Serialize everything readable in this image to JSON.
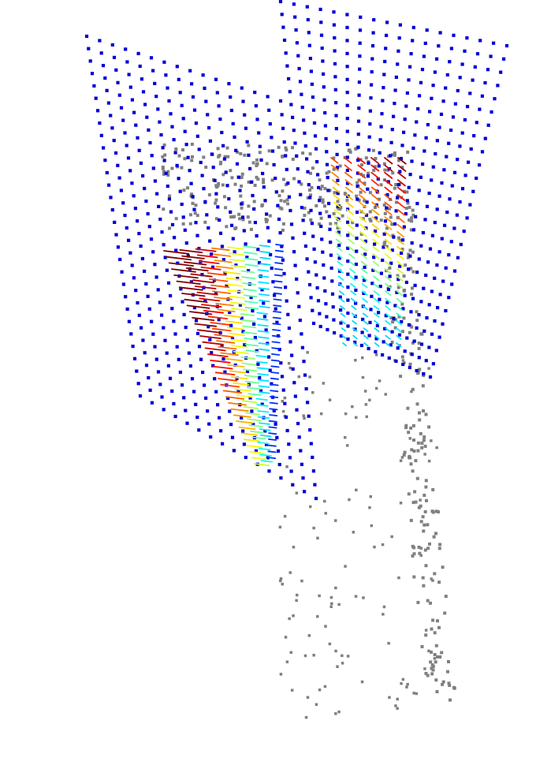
{
  "figure": {
    "colors": {
      "background": "#ffffff",
      "grid_points": "#0000d8",
      "scatter_points": "#808080",
      "colormap": [
        "#00007f",
        "#0000ff",
        "#00bfff",
        "#00ffff",
        "#7fff7f",
        "#ffff00",
        "#ff7f00",
        "#ff0000",
        "#7f0000"
      ]
    },
    "layers": [
      {
        "name": "plane-grid-left",
        "kind": "grid-points"
      },
      {
        "name": "plane-grid-right",
        "kind": "grid-points"
      },
      {
        "name": "point-cloud",
        "kind": "scatter-points"
      },
      {
        "name": "vector-field-front",
        "kind": "colored-arrows"
      },
      {
        "name": "vector-field-back",
        "kind": "colored-arrows"
      }
    ]
  }
}
